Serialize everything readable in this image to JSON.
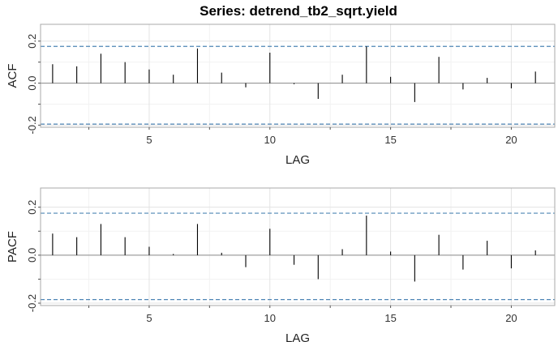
{
  "title": "Series:  detrend_tb2_sqrt.yield",
  "chart_data": [
    {
      "type": "bar",
      "ylabel": "ACF",
      "xlabel": "LAG",
      "xlim": [
        0.5,
        21.8
      ],
      "ylim": [
        -0.21,
        0.28
      ],
      "xticks": [
        5,
        10,
        15,
        20
      ],
      "yticks": [
        -0.2,
        0.0,
        0.2
      ],
      "ytick_labels": [
        "-0.2",
        "0.0",
        "0.2"
      ],
      "confidence": [
        0.175,
        -0.195
      ],
      "lags": [
        1,
        2,
        3,
        4,
        5,
        6,
        7,
        8,
        9,
        10,
        11,
        12,
        13,
        14,
        15,
        16,
        17,
        18,
        19,
        20,
        21
      ],
      "values": [
        0.09,
        0.08,
        0.14,
        0.1,
        0.065,
        0.04,
        0.165,
        0.05,
        -0.02,
        0.145,
        -0.005,
        -0.075,
        0.04,
        0.175,
        0.03,
        -0.09,
        0.125,
        -0.03,
        0.025,
        -0.025,
        0.055
      ]
    },
    {
      "type": "bar",
      "ylabel": "PACF",
      "xlabel": "LAG",
      "xlim": [
        0.5,
        21.8
      ],
      "ylim": [
        -0.21,
        0.28
      ],
      "xticks": [
        5,
        10,
        15,
        20
      ],
      "yticks": [
        -0.2,
        0.0,
        0.2
      ],
      "ytick_labels": [
        "-0.2",
        "0.0",
        "0.2"
      ],
      "confidence": [
        0.175,
        -0.185
      ],
      "lags": [
        1,
        2,
        3,
        4,
        5,
        6,
        7,
        8,
        9,
        10,
        11,
        12,
        13,
        14,
        15,
        16,
        17,
        18,
        19,
        20,
        21
      ],
      "values": [
        0.09,
        0.075,
        0.13,
        0.075,
        0.035,
        0.005,
        0.13,
        0.01,
        -0.05,
        0.11,
        -0.04,
        -0.1,
        0.025,
        0.165,
        0.015,
        -0.11,
        0.085,
        -0.06,
        0.06,
        -0.055,
        0.02
      ]
    }
  ]
}
